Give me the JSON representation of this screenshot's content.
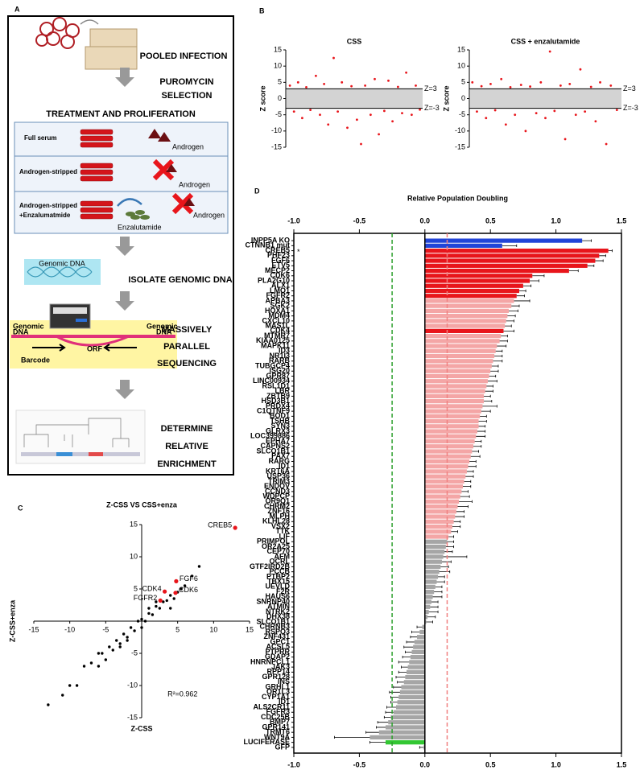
{
  "panel_labels": [
    "A",
    "B",
    "C",
    "D"
  ],
  "diagram": {
    "steps": {
      "infection": "POOLED INFECTION",
      "selection": [
        "PUROMYCIN",
        "SELECTION"
      ],
      "treatment": "TREATMENT AND PROLIFERATION",
      "isolate": "ISOLATE GENOMIC DNA",
      "sequencing": [
        "MASSIVELY",
        "PARALLEL",
        "SEQUENCING"
      ],
      "enrichment": [
        "DETERMINE",
        "RELATIVE",
        "ENRICHMENT"
      ]
    },
    "conditions": [
      "Full serum",
      "Androgen-stripped",
      "Androgen-stripped",
      "+Enzalumatmide"
    ],
    "androgen": "Androgen",
    "drug": "Enzalutamide",
    "genomic_dna_image": "Genomic DNA",
    "genomic_dna_labels": [
      "Genomic",
      "DNA"
    ],
    "barcode": "Barcode",
    "orf": "ORF"
  },
  "chart_data": [
    {
      "type": "scatter",
      "title": "CSS",
      "ylabel": "Z score",
      "xlim": [
        0,
        100
      ],
      "ylim": [
        -15,
        15
      ],
      "yticks": [
        15,
        10,
        5,
        0,
        -5,
        -10,
        -15
      ],
      "hlines": [
        {
          "value": 3,
          "label": "Z=3"
        },
        {
          "value": -3,
          "label": "Z=-3"
        }
      ],
      "band_color": "#d3d3d3",
      "series": [
        {
          "color": "#e8151b",
          "x": [
            3,
            6,
            9,
            12,
            15,
            18,
            22,
            25,
            28,
            31,
            35,
            38,
            41,
            45,
            48,
            52,
            55,
            58,
            62,
            65,
            68,
            72,
            75,
            78,
            82,
            85,
            88,
            92,
            95,
            98
          ],
          "values": [
            4,
            -4,
            5,
            -6,
            3.5,
            -3.5,
            7,
            -5,
            4.5,
            -8,
            12.5,
            -4,
            5,
            -9,
            3.8,
            -6.5,
            -14,
            4,
            -5,
            6,
            -11,
            -3.8,
            5.5,
            -7,
            3.6,
            -4.5,
            8,
            -5,
            4,
            -3.4
          ]
        }
      ]
    },
    {
      "type": "scatter",
      "title": "CSS + enzalutamide",
      "ylabel": "Z score",
      "xlim": [
        0,
        100
      ],
      "ylim": [
        -15,
        15
      ],
      "yticks": [
        15,
        10,
        5,
        0,
        -5,
        -10,
        -15
      ],
      "hlines": [
        {
          "value": 3,
          "label": "Z=3"
        },
        {
          "value": -3,
          "label": "Z=-3"
        }
      ],
      "band_color": "#d3d3d3",
      "series": [
        {
          "color": "#e8151b",
          "x": [
            2,
            5,
            8,
            11,
            14,
            17,
            21,
            24,
            27,
            30,
            34,
            37,
            40,
            44,
            47,
            50,
            53,
            56,
            60,
            63,
            66,
            70,
            73,
            76,
            80,
            83,
            86,
            90,
            93,
            97
          ],
          "values": [
            5,
            -4,
            3.8,
            -6,
            4.5,
            -3.6,
            6,
            -8,
            3.5,
            -5,
            4.2,
            -10,
            3.7,
            -4.5,
            5,
            -6,
            14.5,
            -3.8,
            4,
            -12.5,
            4.5,
            -5,
            9,
            -4,
            3.6,
            -7,
            5,
            -14,
            4,
            -3.5
          ]
        }
      ]
    },
    {
      "type": "scatter",
      "title": "Z-CSS VS CSS+enza",
      "xlabel": "Z-CSS",
      "ylabel": "Z-CSS+enza",
      "axis_position": "zero",
      "xlim": [
        -15,
        15
      ],
      "ylim": [
        -15,
        15
      ],
      "xticks": [
        -15,
        -10,
        -5,
        5,
        10,
        15
      ],
      "yticks": [
        15,
        10,
        5,
        -5,
        -10,
        -15
      ],
      "annotation": "R²=0.962",
      "series": [
        {
          "color": "#000000",
          "x": [
            -13,
            -11,
            -9,
            -8,
            -7,
            -6,
            -5.5,
            -5,
            -4.5,
            -4,
            -3.5,
            -3,
            -2.5,
            -2,
            -1.5,
            -1,
            -0.5,
            0,
            0.5,
            1,
            1.5,
            2,
            2.5,
            3,
            3.5,
            4,
            4.5,
            5,
            5.5,
            6,
            7,
            8,
            -10,
            -6,
            -3,
            0,
            2,
            4,
            -2,
            1
          ],
          "values": [
            -13,
            -11.5,
            -10,
            -7,
            -6.5,
            -7,
            -5,
            -6,
            -4,
            -4.5,
            -3,
            -3.5,
            -2,
            -2.5,
            -1,
            -1.5,
            0,
            0.3,
            0,
            1.2,
            1,
            2.3,
            2,
            3,
            3.2,
            4,
            3.5,
            4.5,
            5,
            5.5,
            7,
            8.5,
            -10,
            -5,
            -4,
            -1,
            3,
            2,
            -3,
            2
          ]
        },
        {
          "color": "#e8151b",
          "x": [
            13,
            4.8,
            3.2,
            4.7,
            2.6
          ],
          "values": [
            14.5,
            6.2,
            4.6,
            4.4,
            3.2
          ],
          "labels": [
            "CREB5",
            "FGF6",
            "CDK4",
            "CDK6",
            "FGFR2"
          ]
        }
      ]
    },
    {
      "type": "barh",
      "title": "Relative Population Doubling",
      "xlim": [
        -1,
        1.5
      ],
      "xticks": [
        {
          "value": -1,
          "label": "-1.0"
        },
        -0.5,
        {
          "value": 0,
          "label": "0.0"
        },
        0.5,
        {
          "value": 1,
          "label": "1.0"
        },
        1.5
      ],
      "ref_lines": [
        {
          "value": -0.25,
          "color": "#2ca02c"
        },
        {
          "value": 0.17,
          "color": "#f08080"
        }
      ],
      "annotation": {
        "text": "*",
        "category": "CREB5",
        "color": "#e8151b"
      },
      "categories": [
        "INPP5A KO",
        "CTNNB1 mut",
        "CREB5",
        "PHF23",
        "FGF6",
        "ETV5",
        "MECP2",
        "CDK6",
        "PLA2G10",
        "ALX1",
        "LMO1",
        "FGFR2",
        "APBA3",
        "SGK2",
        "HOXA1",
        "MDM4",
        "CXCL10",
        "MAS1L",
        "CDK4",
        "MTMR7",
        "KIAA0125",
        "MAPK11",
        "ID3",
        "NR1I3",
        "RARB",
        "TUBGCP4",
        "ISG20",
        "GPR87",
        "LINC00934",
        "RSL1D1",
        "LBR",
        "ZBTB9",
        "HSD3B1",
        "PRDX4",
        "C1QTNF9",
        "BOD1",
        "TSHB",
        "SYN3",
        "GLRX3",
        "LOC399886",
        "EPHA7",
        "CAPNS2",
        "SLCO1B1",
        "PAX7",
        "RARG",
        "ID1",
        "KRT6A",
        "USP36",
        "TRIM3",
        "ENDOV",
        "CCND3",
        "WDPCP",
        "OR9Q1",
        "CHRM2",
        "ZNF16",
        "MLPH",
        "KLHL28",
        "VSX2",
        "TTK",
        "LIF",
        "PRIMPOL",
        "OR2A25",
        "CEP70",
        "AFM",
        "OCRL",
        "GTF2IRD2B",
        "PCCB",
        "PTBP2",
        "TBX15",
        "UEVLD",
        "F2R",
        "HAUS6",
        "SNRNP40",
        "ATMIN",
        "NTRK2",
        "DHX38",
        "SLCO1B1",
        "CHRNB3",
        "RSPO3",
        "ZNF431",
        "GPC1",
        "ACSL5",
        "PTPRR",
        "GDAP2",
        "HNRNPCL1",
        "JAK3",
        "RPP14",
        "GPR128",
        "INS",
        "GRHL1",
        "OR1L3",
        "CYP1A1",
        "ID1",
        "ALS2CR11",
        "FGFR3",
        "CDC25B",
        "BMP7",
        "GPR141",
        "TRMT6",
        "WNT9A",
        "LUCIFERASE",
        "GFP"
      ],
      "values": [
        1.2,
        0.59,
        1.4,
        1.33,
        1.3,
        1.24,
        1.1,
        0.82,
        0.8,
        0.75,
        0.72,
        0.7,
        0.68,
        0.66,
        0.64,
        0.63,
        0.62,
        0.61,
        0.6,
        0.58,
        0.57,
        0.55,
        0.54,
        0.53,
        0.52,
        0.51,
        0.5,
        0.49,
        0.48,
        0.47,
        0.46,
        0.45,
        0.45,
        0.44,
        0.43,
        0.42,
        0.41,
        0.41,
        0.4,
        0.39,
        0.38,
        0.37,
        0.36,
        0.35,
        0.34,
        0.33,
        0.32,
        0.31,
        0.3,
        0.29,
        0.28,
        0.27,
        0.26,
        0.25,
        0.24,
        0.23,
        0.22,
        0.21,
        0.2,
        0.18,
        0.17,
        0.16,
        0.15,
        0.14,
        0.13,
        0.12,
        0.11,
        0.1,
        0.09,
        0.08,
        0.07,
        0.06,
        0.05,
        0.04,
        0.03,
        0.02,
        0.01,
        -0.02,
        -0.04,
        -0.06,
        -0.08,
        -0.09,
        -0.1,
        -0.11,
        -0.12,
        -0.13,
        -0.14,
        -0.15,
        -0.16,
        -0.18,
        -0.19,
        -0.2,
        -0.21,
        -0.22,
        -0.24,
        -0.26,
        -0.28,
        -0.3,
        -0.35,
        -0.42,
        -0.3,
        -0.01
      ],
      "errors": [
        0.07,
        0.11,
        0.03,
        0.05,
        0.06,
        0.05,
        0.07,
        0.09,
        0.07,
        0.06,
        0.05,
        0.06,
        0.12,
        0.06,
        0.07,
        0.06,
        0.06,
        0.05,
        0.08,
        0.05,
        0.06,
        0.07,
        0.05,
        0.06,
        0.07,
        0.05,
        0.06,
        0.05,
        0.07,
        0.05,
        0.06,
        0.05,
        0.06,
        0.11,
        0.07,
        0.05,
        0.06,
        0.05,
        0.06,
        0.07,
        0.05,
        0.06,
        0.05,
        0.07,
        0.05,
        0.06,
        0.05,
        0.06,
        0.05,
        0.06,
        0.05,
        0.07,
        0.1,
        0.08,
        0.06,
        0.07,
        0.05,
        0.06,
        0.05,
        0.04,
        0.05,
        0.06,
        0.06,
        0.18,
        0.07,
        0.06,
        0.08,
        0.05,
        0.06,
        0.05,
        0.06,
        0.07,
        0.05,
        0.06,
        0.07,
        0.06,
        0.05,
        0.04,
        0.06,
        0.05,
        0.06,
        0.07,
        0.05,
        0.06,
        0.08,
        0.05,
        0.06,
        0.07,
        0.05,
        0.06,
        0.08,
        0.06,
        0.05,
        0.07,
        0.06,
        0.05,
        0.08,
        0.07,
        0.1,
        0.27,
        0.12,
        0.03
      ],
      "colors": [
        "#2144d8",
        "#2144d8",
        "#e8151b",
        "#e8151b",
        "#e8151b",
        "#e8151b",
        "#e8151b",
        "#e8151b",
        "#e8151b",
        "#e8151b",
        "#e8151b",
        "#e8151b",
        "#f4a6a6",
        "#f4a6a6",
        "#f4a6a6",
        "#f4a6a6",
        "#f4a6a6",
        "#f4a6a6",
        "#e8151b",
        "#f4a6a6",
        "#f4a6a6",
        "#f4a6a6",
        "#f4a6a6",
        "#f4a6a6",
        "#f4a6a6",
        "#f4a6a6",
        "#f4a6a6",
        "#f4a6a6",
        "#f4a6a6",
        "#f4a6a6",
        "#f4a6a6",
        "#f4a6a6",
        "#f4a6a6",
        "#f4a6a6",
        "#f4a6a6",
        "#f4a6a6",
        "#f4a6a6",
        "#f4a6a6",
        "#f4a6a6",
        "#f4a6a6",
        "#f4a6a6",
        "#f4a6a6",
        "#f4a6a6",
        "#f4a6a6",
        "#f4a6a6",
        "#f4a6a6",
        "#f4a6a6",
        "#f4a6a6",
        "#f4a6a6",
        "#f4a6a6",
        "#f4a6a6",
        "#f4a6a6",
        "#f4a6a6",
        "#f4a6a6",
        "#f4a6a6",
        "#f4a6a6",
        "#f4a6a6",
        "#f4a6a6",
        "#f4a6a6",
        "#f4a6a6",
        "#a6a6a6",
        "#a6a6a6",
        "#a6a6a6",
        "#a6a6a6",
        "#a6a6a6",
        "#a6a6a6",
        "#a6a6a6",
        "#a6a6a6",
        "#a6a6a6",
        "#a6a6a6",
        "#a6a6a6",
        "#a6a6a6",
        "#a6a6a6",
        "#a6a6a6",
        "#a6a6a6",
        "#a6a6a6",
        "#a6a6a6",
        "#a6a6a6",
        "#a6a6a6",
        "#a6a6a6",
        "#a6a6a6",
        "#a6a6a6",
        "#a6a6a6",
        "#a6a6a6",
        "#a6a6a6",
        "#a6a6a6",
        "#a6a6a6",
        "#a6a6a6",
        "#a6a6a6",
        "#a6a6a6",
        "#a6a6a6",
        "#a6a6a6",
        "#a6a6a6",
        "#a6a6a6",
        "#a6a6a6",
        "#a6a6a6",
        "#a6a6a6",
        "#a6a6a6",
        "#a6a6a6",
        "#a6a6a6",
        "#33c733",
        "#a6a6a6"
      ]
    }
  ]
}
